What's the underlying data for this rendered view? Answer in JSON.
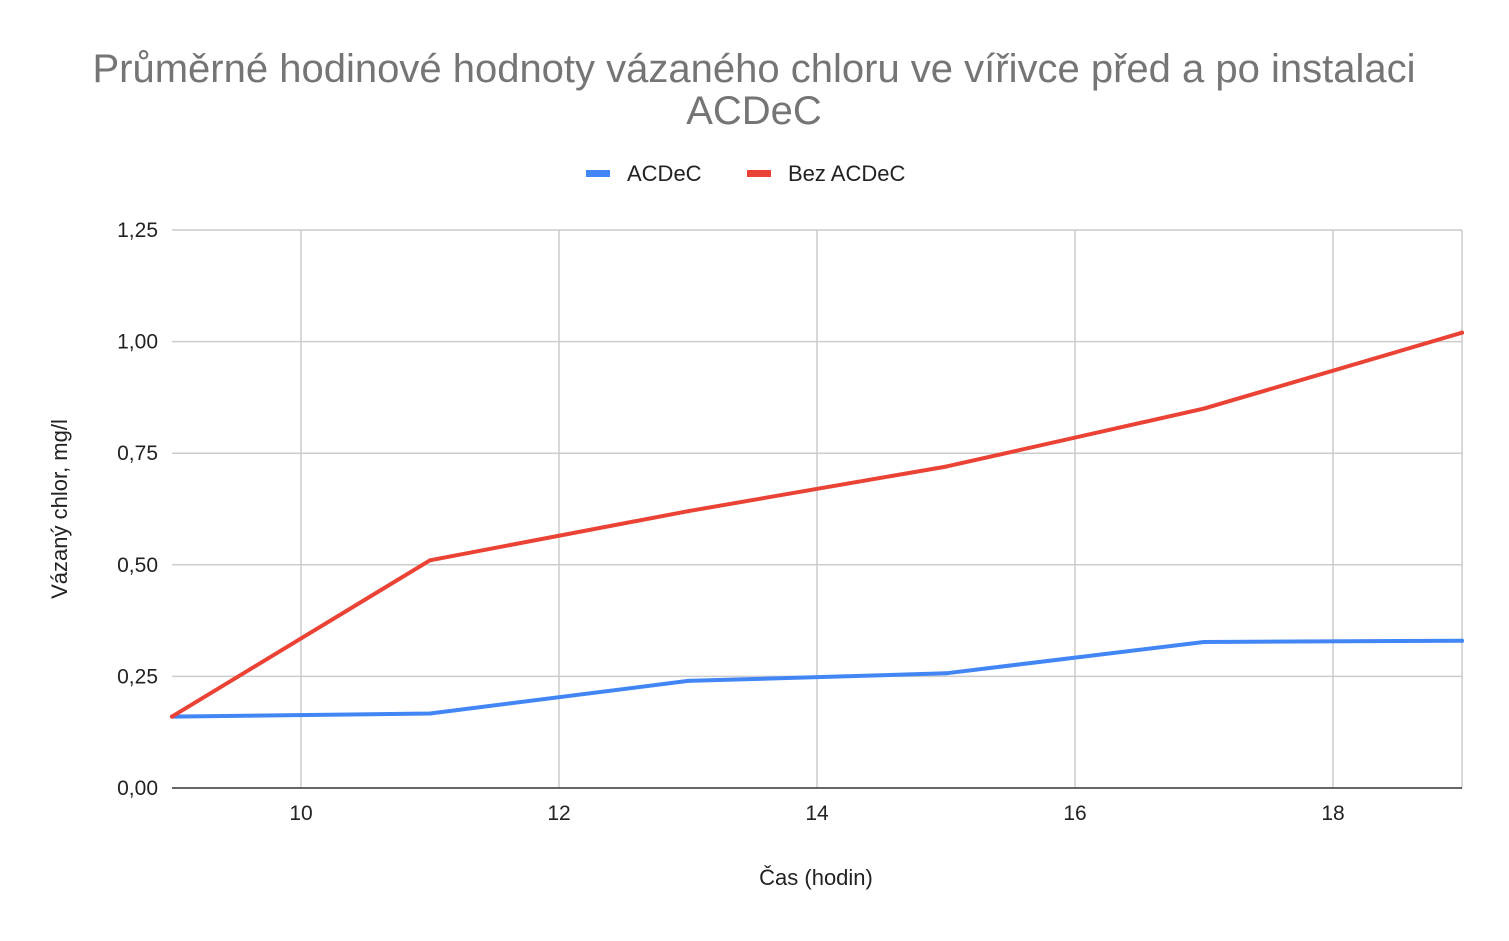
{
  "chart_data": {
    "type": "line",
    "title_lines": [
      "Průměrné hodinové hodnoty vázaného chloru ve vířivce před a po instalaci",
      "ACDeC"
    ],
    "xlabel": "Čas (hodin)",
    "ylabel": "Vázaný chlor, mg/l",
    "xlim": [
      9,
      19
    ],
    "ylim": [
      0,
      1.25
    ],
    "x_ticks": [
      {
        "value": 10,
        "label": "10"
      },
      {
        "value": 12,
        "label": "12"
      },
      {
        "value": 14,
        "label": "14"
      },
      {
        "value": 16,
        "label": "16"
      },
      {
        "value": 18,
        "label": "18"
      }
    ],
    "y_ticks": [
      {
        "value": 0,
        "label": "0,00"
      },
      {
        "value": 0.25,
        "label": "0,25"
      },
      {
        "value": 0.5,
        "label": "0,50"
      },
      {
        "value": 0.75,
        "label": "0,75"
      },
      {
        "value": 1.0,
        "label": "1,00"
      },
      {
        "value": 1.25,
        "label": "1,25"
      }
    ],
    "grid": true,
    "legend_position": "top",
    "x": [
      9,
      11,
      13,
      15,
      17,
      19
    ],
    "series": [
      {
        "name": "ACDeC",
        "color": "#4285f4",
        "values": [
          0.16,
          0.167,
          0.24,
          0.257,
          0.327,
          0.33
        ]
      },
      {
        "name": "Bez ACDeC",
        "color": "#ea4335",
        "values": [
          0.16,
          0.51,
          0.62,
          0.72,
          0.85,
          1.02
        ]
      }
    ]
  }
}
